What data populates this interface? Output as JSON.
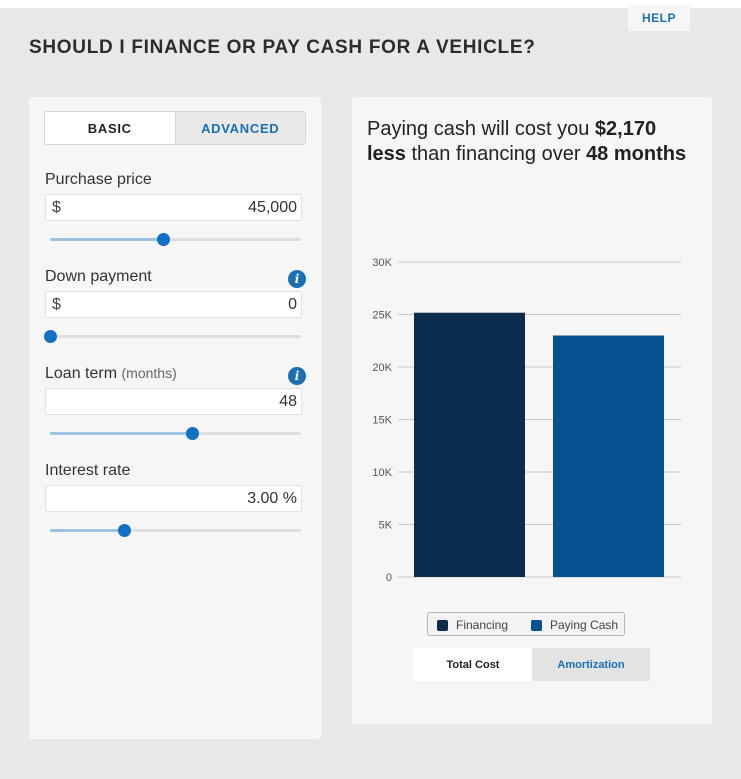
{
  "help_label": "HELP",
  "page_title": "SHOULD I FINANCE OR PAY CASH FOR A VEHICLE?",
  "tabs": {
    "basic": "BASIC",
    "advanced": "ADVANCED"
  },
  "fields": {
    "purchase_price": {
      "label": "Purchase price",
      "prefix": "$",
      "value": "45,000",
      "slider_fraction": 0.45
    },
    "down_payment": {
      "label": "Down payment",
      "prefix": "$",
      "value": "0",
      "slider_fraction": 0.0,
      "info_icon": "i"
    },
    "loan_term": {
      "label": "Loan term",
      "sublabel": "(months)",
      "value": "48",
      "slider_fraction": 0.565,
      "info_icon": "i"
    },
    "interest_rate": {
      "label": "Interest rate",
      "value": "3.00 %",
      "slider_fraction": 0.295
    }
  },
  "summary": {
    "pre": "Paying cash will cost you ",
    "amount": "$2,170",
    "less": "less",
    "mid": " than financing over ",
    "months": "48",
    "months_word": "months"
  },
  "chart_data": {
    "type": "bar",
    "categories": [
      "Financing",
      "Paying Cash"
    ],
    "values": [
      25170,
      23000
    ],
    "colors": [
      "#0d2d4f",
      "#065291"
    ],
    "ylim": [
      0,
      30000
    ],
    "yticks": [
      0,
      5000,
      10000,
      15000,
      20000,
      25000,
      30000
    ],
    "ytick_labels": [
      "0",
      "5K",
      "10K",
      "15K",
      "20K",
      "25K",
      "30K"
    ],
    "grid": true,
    "legend": [
      "Financing",
      "Paying Cash"
    ],
    "legend_position": "bottom"
  },
  "view_tabs": {
    "total_cost": "Total Cost",
    "amortization": "Amortization"
  },
  "icons": {
    "info": "info-icon"
  },
  "colors": {
    "accent": "#1a6fb5",
    "slider_thumb": "#1070c4"
  }
}
